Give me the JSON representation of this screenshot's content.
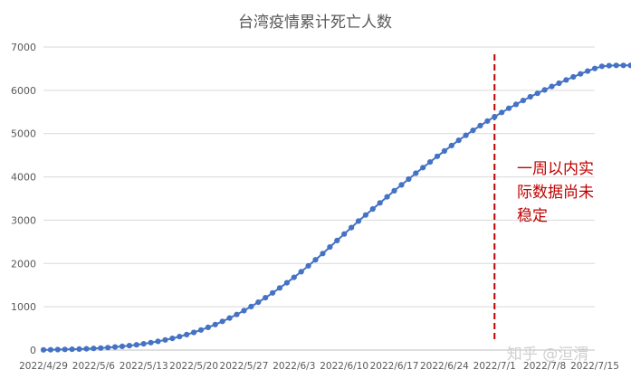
{
  "chart_data": {
    "type": "line",
    "title": "台湾疫情累计死亡人数",
    "ylim": [
      0,
      7000
    ],
    "yticks": [
      0,
      1000,
      2000,
      3000,
      4000,
      5000,
      6000,
      7000
    ],
    "xlim": [
      "2022/4/29",
      "2022/7/15"
    ],
    "xticks": [
      "2022/4/29",
      "2022/5/6",
      "2022/5/13",
      "2022/5/20",
      "2022/5/27",
      "2022/6/3",
      "2022/6/10",
      "2022/6/17",
      "2022/6/24",
      "2022/7/1",
      "2022/7/8",
      "2022/7/15"
    ],
    "grid": true,
    "legend": "none",
    "series": [
      {
        "color": "#4472c4",
        "marker": "circle",
        "x_start": "2022/4/29",
        "x_step_days": 1,
        "values": [
          5,
          7,
          10,
          14,
          18,
          24,
          30,
          37,
          46,
          57,
          70,
          85,
          102,
          122,
          145,
          171,
          200,
          233,
          270,
          311,
          357,
          408,
          463,
          524,
          590,
          662,
          739,
          822,
          911,
          1005,
          1105,
          1210,
          1320,
          1435,
          1555,
          1680,
          1810,
          1945,
          2085,
          2230,
          2380,
          2530,
          2680,
          2830,
          2980,
          3120,
          3260,
          3400,
          3540,
          3680,
          3815,
          3950,
          4085,
          4215,
          4345,
          4475,
          4600,
          4725,
          4845,
          4960,
          5075,
          5185,
          5290,
          5390,
          5490,
          5585,
          5675,
          5765,
          5850,
          5930,
          6010,
          6090,
          6165,
          6240,
          6310,
          6380,
          6445,
          6505,
          6555,
          6570,
          6575,
          6575,
          6575
        ]
      }
    ],
    "annotations": [
      {
        "type": "vline",
        "x": "2022/7/1",
        "color": "#c00000",
        "style": "dashed"
      },
      {
        "type": "text",
        "lines": [
          "一周以内实",
          "际数据尚未",
          "稳定"
        ],
        "color": "#c00000"
      }
    ]
  },
  "watermark": "知乎 @洹渭"
}
